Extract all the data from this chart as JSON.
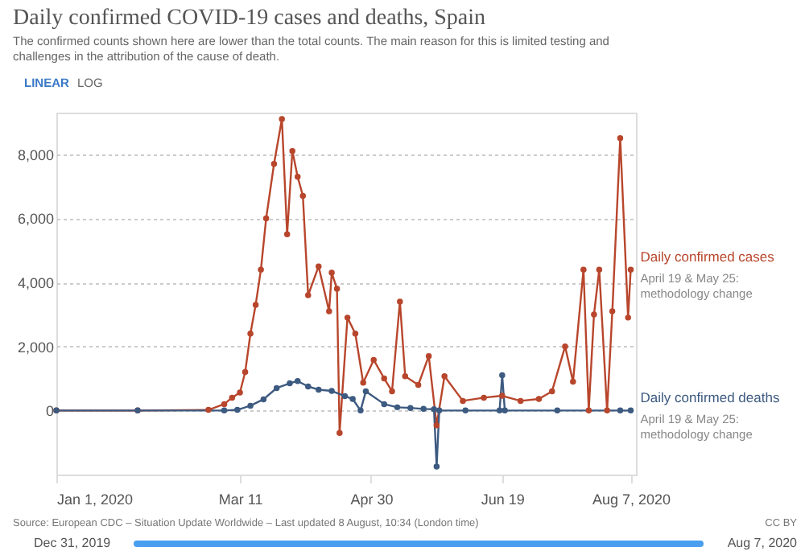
{
  "chart_data": {
    "type": "line",
    "title": "Daily confirmed COVID-19 cases and deaths, Spain",
    "subtitle": "The confirmed counts shown here are lower than the total counts. The main reason for this is limited testing and challenges in the attribution of the cause of death.",
    "series": [
      {
        "name": "Daily confirmed cases",
        "color": "#b8462c",
        "x": [
          "2020-01-01",
          "2020-02-01",
          "2020-02-28",
          "2020-03-05",
          "2020-03-08",
          "2020-03-11",
          "2020-03-13",
          "2020-03-15",
          "2020-03-17",
          "2020-03-19",
          "2020-03-21",
          "2020-03-24",
          "2020-03-27",
          "2020-03-29",
          "2020-03-31",
          "2020-04-02",
          "2020-04-04",
          "2020-04-06",
          "2020-04-10",
          "2020-04-14",
          "2020-04-15",
          "2020-04-17",
          "2020-04-18",
          "2020-04-21",
          "2020-04-24",
          "2020-04-27",
          "2020-05-01",
          "2020-05-05",
          "2020-05-08",
          "2020-05-11",
          "2020-05-13",
          "2020-05-18",
          "2020-05-22",
          "2020-05-25",
          "2020-05-28",
          "2020-06-04",
          "2020-06-12",
          "2020-06-19",
          "2020-06-26",
          "2020-07-03",
          "2020-07-08",
          "2020-07-13",
          "2020-07-16",
          "2020-07-20",
          "2020-07-22",
          "2020-07-24",
          "2020-07-26",
          "2020-07-29",
          "2020-07-31",
          "2020-08-03",
          "2020-08-06",
          "2020-08-07"
        ],
        "values": [
          0,
          0,
          20,
          200,
          400,
          560,
          1200,
          2400,
          3300,
          4400,
          6000,
          7700,
          9100,
          5500,
          8100,
          7300,
          6700,
          3600,
          4500,
          3100,
          4300,
          3800,
          -700,
          2900,
          2400,
          870,
          1580,
          1000,
          600,
          3400,
          1070,
          800,
          1700,
          -460,
          1070,
          300,
          400,
          460,
          300,
          360,
          600,
          2000,
          900,
          4400,
          0,
          3000,
          4400,
          0,
          3100,
          8500,
          2900,
          4400
        ]
      },
      {
        "name": "Daily confirmed deaths",
        "color": "#3d5a80",
        "x": [
          "2020-01-01",
          "2020-02-01",
          "2020-03-05",
          "2020-03-10",
          "2020-03-15",
          "2020-03-20",
          "2020-03-25",
          "2020-03-30",
          "2020-04-02",
          "2020-04-06",
          "2020-04-10",
          "2020-04-15",
          "2020-04-20",
          "2020-04-23",
          "2020-04-26",
          "2020-04-28",
          "2020-05-05",
          "2020-05-10",
          "2020-05-15",
          "2020-05-20",
          "2020-05-24",
          "2020-05-25",
          "2020-05-26",
          "2020-06-05",
          "2020-06-18",
          "2020-06-19",
          "2020-06-20",
          "2020-07-10",
          "2020-08-03",
          "2020-08-07"
        ],
        "values": [
          0,
          0,
          0,
          20,
          150,
          350,
          700,
          850,
          920,
          750,
          650,
          610,
          450,
          360,
          0,
          600,
          200,
          100,
          80,
          50,
          40,
          -1750,
          0,
          0,
          0,
          1100,
          0,
          0,
          0,
          0
        ]
      }
    ],
    "xlim": [
      "2020-01-01",
      "2020-08-09"
    ],
    "xticks": [
      {
        "value": "2020-01-01",
        "label": "Jan 1, 2020"
      },
      {
        "value": "2020-03-11",
        "label": "Mar 11"
      },
      {
        "value": "2020-04-30",
        "label": "Apr 30"
      },
      {
        "value": "2020-06-19",
        "label": "Jun 19"
      },
      {
        "value": "2020-08-07",
        "label": "Aug 7, 2020"
      }
    ],
    "ylim": [
      -2000,
      9300
    ],
    "yticks": [
      {
        "value": 0,
        "label": "0"
      },
      {
        "value": 2000,
        "label": "2,000"
      },
      {
        "value": 4000,
        "label": "4,000"
      },
      {
        "value": 6000,
        "label": "6,000"
      },
      {
        "value": 8000,
        "label": "8,000"
      }
    ],
    "grid": "y",
    "marker": "circle",
    "line_style": "solid",
    "legend": false,
    "annotations": [
      "April 19 & May 25: methodology change",
      "April 19 & May 25: methodology change",
      "Source: European CDC – Situation Update Worldwide – Last updated 8 August, 10:34 (London time)",
      "CC BY",
      "LINEAR",
      "LOG",
      "Dec 31, 2019",
      "Aug 7, 2020"
    ]
  }
}
